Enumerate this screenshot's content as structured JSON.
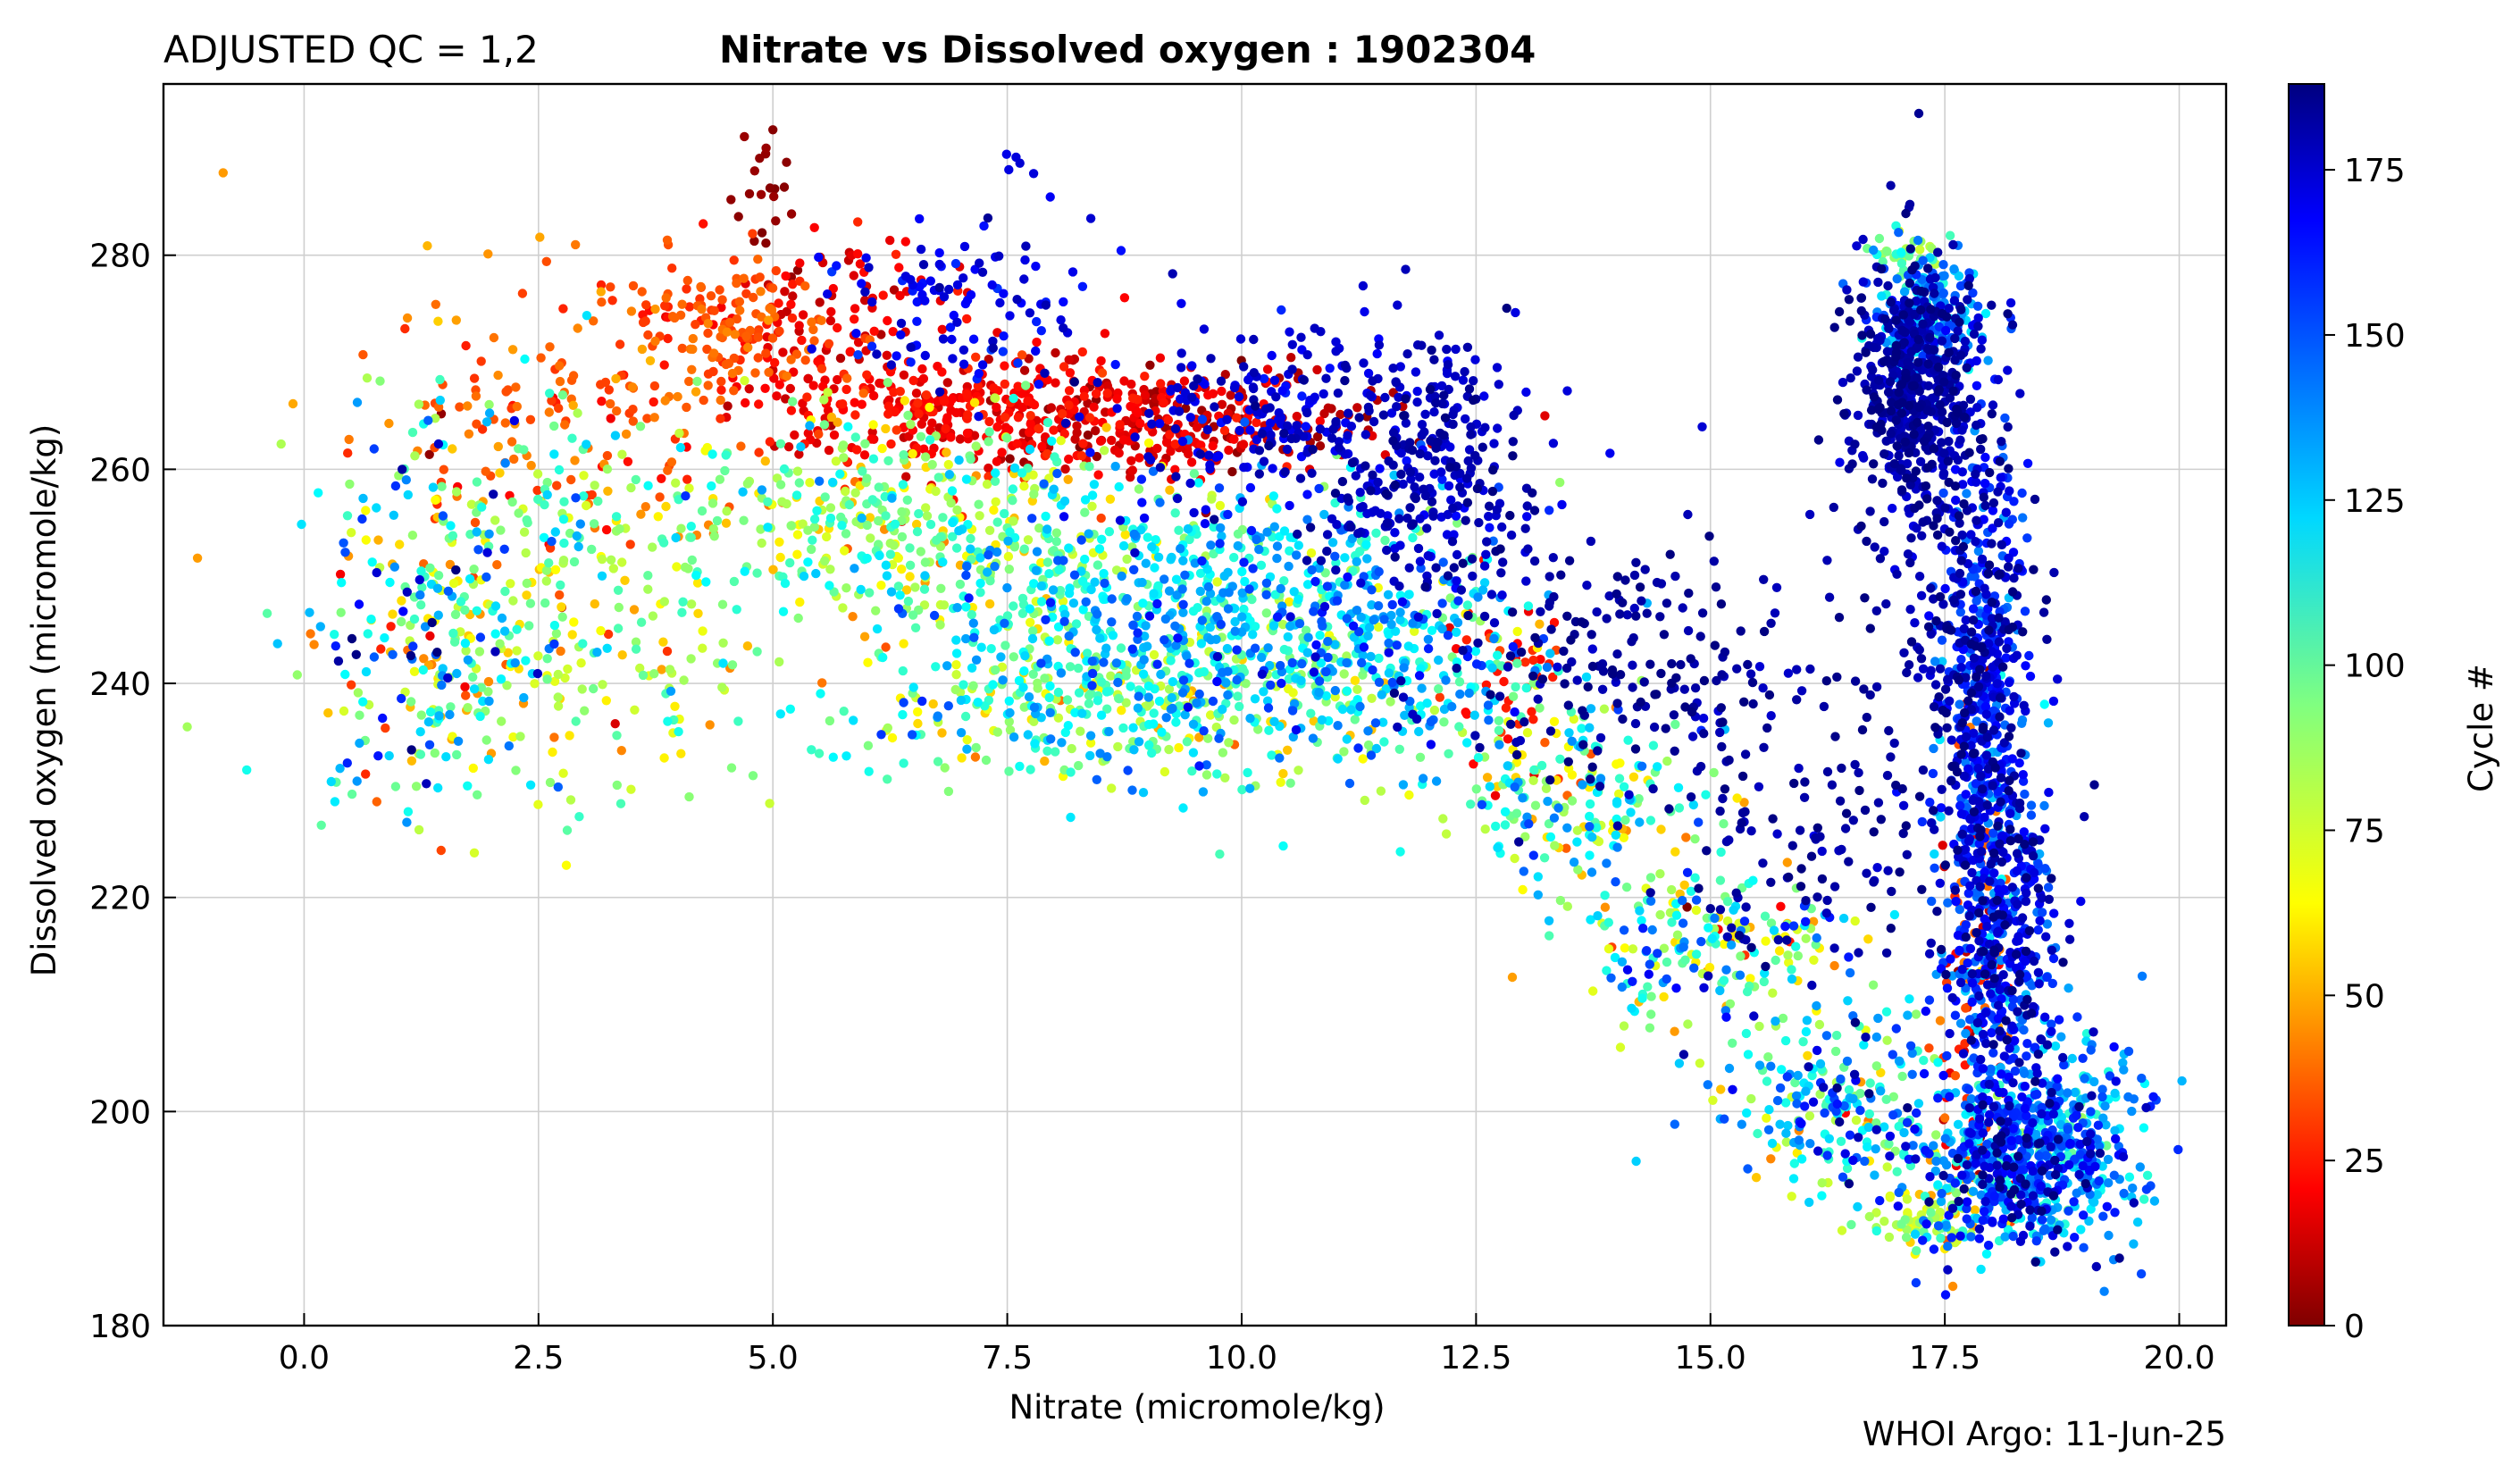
{
  "header": {
    "qc_label": "ADJUSTED QC = 1,2",
    "title": "Nitrate vs Dissolved oxygen : 1902304"
  },
  "footer": {
    "credit": "WHOI Argo: 11-Jun-25"
  },
  "chart_data": {
    "type": "scatter",
    "title": "Nitrate vs Dissolved oxygen : 1902304",
    "xlabel": "Nitrate  (micromole/kg)",
    "ylabel": "Dissolved oxygen  (micromole/kg)",
    "xlim": [
      -1.5,
      20.5
    ],
    "ylim": [
      180,
      296
    ],
    "xticks": [
      0.0,
      2.5,
      5.0,
      7.5,
      10.0,
      12.5,
      15.0,
      17.5,
      20.0
    ],
    "xtick_labels": [
      "0.0",
      "2.5",
      "5.0",
      "7.5",
      "10.0",
      "12.5",
      "15.0",
      "17.5",
      "20.0"
    ],
    "yticks": [
      180,
      200,
      220,
      240,
      260,
      280
    ],
    "ytick_labels": [
      "180",
      "200",
      "220",
      "240",
      "260",
      "280"
    ],
    "grid": true,
    "colormap": "jet",
    "colorbar": {
      "label": "Cycle #",
      "range": [
        0,
        188
      ],
      "ticks": [
        0,
        25,
        50,
        75,
        100,
        125,
        150,
        175
      ],
      "tick_labels": [
        "0",
        "25",
        "50",
        "75",
        "100",
        "125",
        "150",
        "175"
      ]
    },
    "clusters": [
      {
        "x": 1.4,
        "y": 246,
        "sx": 0.8,
        "sy": 10,
        "c": 110,
        "sc": 40,
        "n": 260
      },
      {
        "x": 2.8,
        "y": 266,
        "sx": 1.0,
        "sy": 8,
        "c": 40,
        "sc": 8,
        "n": 160
      },
      {
        "x": 3.0,
        "y": 250,
        "sx": 1.2,
        "sy": 8,
        "c": 95,
        "sc": 18,
        "n": 200
      },
      {
        "x": 4.5,
        "y": 273,
        "sx": 0.6,
        "sy": 3,
        "c": 38,
        "sc": 6,
        "n": 130
      },
      {
        "x": 4.9,
        "y": 286,
        "sx": 0.15,
        "sy": 3,
        "c": 3,
        "sc": 2,
        "n": 20
      },
      {
        "x": 5.5,
        "y": 275,
        "sx": 0.5,
        "sy": 4,
        "c": 20,
        "sc": 6,
        "n": 90
      },
      {
        "x": 7.0,
        "y": 266,
        "sx": 1.2,
        "sy": 3,
        "c": 22,
        "sc": 5,
        "n": 320
      },
      {
        "x": 9.2,
        "y": 264,
        "sx": 1.2,
        "sy": 2.5,
        "c": 15,
        "sc": 7,
        "n": 260
      },
      {
        "x": 7.0,
        "y": 276,
        "sx": 0.8,
        "sy": 4,
        "c": 168,
        "sc": 6,
        "n": 110
      },
      {
        "x": 10.5,
        "y": 265,
        "sx": 1.0,
        "sy": 4,
        "c": 172,
        "sc": 6,
        "n": 220
      },
      {
        "x": 12.0,
        "y": 260,
        "sx": 0.6,
        "sy": 6,
        "c": 178,
        "sc": 6,
        "n": 260
      },
      {
        "x": 14.0,
        "y": 243,
        "sx": 0.9,
        "sy": 7,
        "c": 183,
        "sc": 5,
        "n": 180
      },
      {
        "x": 15.8,
        "y": 226,
        "sx": 0.8,
        "sy": 8,
        "c": 183,
        "sc": 5,
        "n": 110
      },
      {
        "x": 6.5,
        "y": 255,
        "sx": 1.3,
        "sy": 5,
        "c": 90,
        "sc": 20,
        "n": 420
      },
      {
        "x": 9.5,
        "y": 247,
        "sx": 1.5,
        "sy": 6,
        "c": 120,
        "sc": 22,
        "n": 700
      },
      {
        "x": 9.0,
        "y": 238,
        "sx": 1.6,
        "sy": 4,
        "c": 100,
        "sc": 25,
        "n": 380
      },
      {
        "x": 11.5,
        "y": 242,
        "sx": 0.8,
        "sy": 5,
        "c": 130,
        "sc": 25,
        "n": 220
      },
      {
        "x": 12.8,
        "y": 241,
        "sx": 0.3,
        "sy": 4,
        "c": 28,
        "sc": 6,
        "n": 40
      },
      {
        "x": 13.5,
        "y": 230,
        "sx": 0.7,
        "sy": 4,
        "c": 100,
        "sc": 30,
        "n": 200
      },
      {
        "x": 15.0,
        "y": 215,
        "sx": 0.8,
        "sy": 4,
        "c": 100,
        "sc": 35,
        "n": 220
      },
      {
        "x": 16.5,
        "y": 200,
        "sx": 0.6,
        "sy": 4,
        "c": 120,
        "sc": 35,
        "n": 230
      },
      {
        "x": 17.2,
        "y": 267,
        "sx": 0.35,
        "sy": 6,
        "c": 180,
        "sc": 6,
        "n": 520
      },
      {
        "x": 17.3,
        "y": 274,
        "sx": 0.3,
        "sy": 3,
        "c": 140,
        "sc": 15,
        "n": 200
      },
      {
        "x": 17.4,
        "y": 245,
        "sx": 0.5,
        "sy": 14,
        "c": 183,
        "sc": 5,
        "n": 150
      },
      {
        "x": 17.9,
        "y": 240,
        "sx": 0.25,
        "sy": 12,
        "c": 165,
        "sc": 16,
        "n": 520
      },
      {
        "x": 18.1,
        "y": 215,
        "sx": 0.3,
        "sy": 10,
        "c": 160,
        "sc": 20,
        "n": 500
      },
      {
        "x": 17.8,
        "y": 210,
        "sx": 0.2,
        "sy": 12,
        "c": 30,
        "sc": 12,
        "n": 100
      },
      {
        "x": 18.3,
        "y": 195,
        "sx": 0.55,
        "sy": 4,
        "c": 145,
        "sc": 25,
        "n": 600
      },
      {
        "x": 17.3,
        "y": 190,
        "sx": 0.3,
        "sy": 1.5,
        "c": 80,
        "sc": 15,
        "n": 70
      },
      {
        "x": 19.0,
        "y": 200,
        "sx": 0.3,
        "sy": 5,
        "c": 140,
        "sc": 20,
        "n": 110
      },
      {
        "x": 17.0,
        "y": 280,
        "sx": 0.2,
        "sy": 1,
        "c": 95,
        "sc": 10,
        "n": 30
      },
      {
        "x": 7.6,
        "y": 288,
        "sx": 0.15,
        "sy": 1,
        "c": 170,
        "sc": 4,
        "n": 5
      },
      {
        "x": 3.0,
        "y": 238,
        "sx": 1.2,
        "sy": 5,
        "c": 75,
        "sc": 20,
        "n": 80
      }
    ]
  }
}
